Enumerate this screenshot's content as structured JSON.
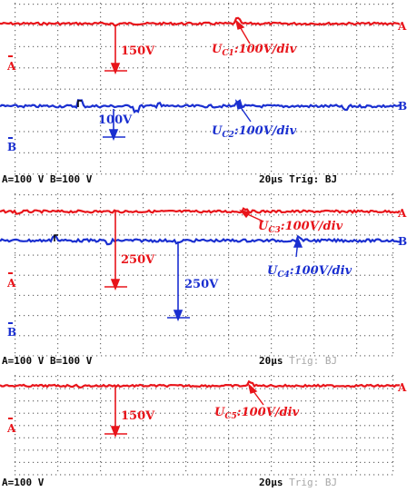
{
  "colors": {
    "channel_a": "#e8141a",
    "channel_b": "#1a2fd0",
    "grid": "#6a6a6a",
    "text": "#0a0a0a"
  },
  "chart_data": [
    {
      "type": "line",
      "channels": [
        {
          "marker": "A",
          "label_main": "U",
          "label_sub": "C1",
          "label_rest": ":100V/div",
          "amplitude": "150V",
          "color": "#e8141a"
        },
        {
          "marker": "B",
          "label_main": "U",
          "label_sub": "C2",
          "label_rest": ":100V/div",
          "amplitude": "100V",
          "color": "#1a2fd0"
        }
      ],
      "footer": {
        "scale_left": "A=100 V  B=100 V",
        "timebase": "20µs",
        "trigger": "Trig: BJ"
      },
      "grid": true
    },
    {
      "type": "line",
      "channels": [
        {
          "marker": "A",
          "label_main": "U",
          "label_sub": "C3",
          "label_rest": ":100V/div",
          "amplitude": "250V",
          "color": "#e8141a"
        },
        {
          "marker": "B",
          "label_main": "U",
          "label_sub": "C4",
          "label_rest": ":100V/div",
          "amplitude": "250V",
          "color": "#1a2fd0"
        }
      ],
      "footer": {
        "scale_left": "A=100 V  B=100 V",
        "timebase": "20µs",
        "trigger": "Trig: BJ"
      },
      "grid": true
    },
    {
      "type": "line",
      "channels": [
        {
          "marker": "A",
          "label_main": "U",
          "label_sub": "C5",
          "label_rest": ":100V/div",
          "amplitude": "150V",
          "color": "#e8141a"
        }
      ],
      "footer": {
        "scale_left": "A=100 V",
        "timebase": "20µs",
        "trigger": "Trig: BJ"
      },
      "grid": true
    }
  ]
}
